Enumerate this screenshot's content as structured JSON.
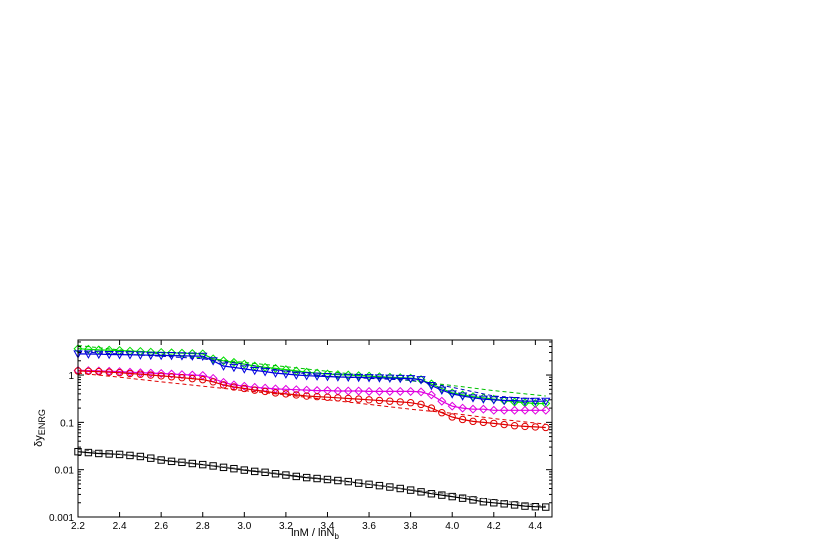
{
  "chart_data": {
    "type": "line",
    "xlabel": "lnM / lnN",
    "xlabel_sub": "b",
    "ylabel": "δy",
    "ylabel_sub": "ENRG",
    "xlim": [
      2.2,
      4.48
    ],
    "ylim": [
      0.001,
      5.5
    ],
    "yscale": "log",
    "xticks": [
      2.2,
      2.4,
      2.6,
      2.8,
      3.0,
      3.2,
      3.4,
      3.6,
      3.8,
      4.0,
      4.2,
      4.4
    ],
    "xtick_labels": [
      "2.2",
      "2.4",
      "2.6",
      "2.8",
      "3.0",
      "3.2",
      "3.4",
      "3.6",
      "3.8",
      "4.0",
      "4.2",
      "4.4"
    ],
    "yticks": [
      0.001,
      0.01,
      0.1,
      1
    ],
    "ytick_labels": [
      "0.001",
      "0.01",
      "0.1",
      "1"
    ],
    "grid": false,
    "series": [
      {
        "color": "#00e000",
        "marker": "diamond",
        "line": "solid",
        "x": [
          2.2,
          2.25,
          2.3,
          2.35,
          2.4,
          2.45,
          2.5,
          2.55,
          2.6,
          2.65,
          2.7,
          2.75,
          2.8,
          2.85,
          2.9,
          2.95,
          3.0,
          3.05,
          3.1,
          3.15,
          3.2,
          3.25,
          3.3,
          3.35,
          3.4,
          3.45,
          3.5,
          3.55,
          3.6,
          3.65,
          3.7,
          3.75,
          3.8,
          3.85,
          3.9,
          3.95,
          4.0,
          4.05,
          4.1,
          4.15,
          4.2,
          4.25,
          4.3,
          4.35,
          4.4,
          4.45
        ],
        "y": [
          3.6,
          3.5,
          3.4,
          3.35,
          3.3,
          3.2,
          3.15,
          3.05,
          3.0,
          2.95,
          2.9,
          2.85,
          2.8,
          2.2,
          2.0,
          1.85,
          1.7,
          1.55,
          1.45,
          1.38,
          1.3,
          1.22,
          1.15,
          1.1,
          1.05,
          1.02,
          1.0,
          0.97,
          0.95,
          0.92,
          0.9,
          0.88,
          0.86,
          0.8,
          0.65,
          0.52,
          0.42,
          0.38,
          0.35,
          0.33,
          0.31,
          0.29,
          0.27,
          0.26,
          0.25,
          0.25
        ]
      },
      {
        "color": "#00c000",
        "marker": "none",
        "line": "dashed",
        "x": [
          2.2,
          2.4,
          2.6,
          2.8,
          3.0,
          3.2,
          3.4,
          3.6,
          3.8,
          4.0,
          4.2,
          4.45
        ],
        "y": [
          4.2,
          3.4,
          2.8,
          2.3,
          1.85,
          1.5,
          1.2,
          0.95,
          0.76,
          0.6,
          0.47,
          0.36
        ]
      },
      {
        "color": "#0000e0",
        "marker": "triangle-down",
        "line": "solid",
        "x": [
          2.2,
          2.25,
          2.3,
          2.35,
          2.4,
          2.45,
          2.5,
          2.55,
          2.6,
          2.65,
          2.7,
          2.75,
          2.8,
          2.85,
          2.9,
          2.95,
          3.0,
          3.05,
          3.1,
          3.15,
          3.2,
          3.25,
          3.3,
          3.35,
          3.4,
          3.45,
          3.5,
          3.55,
          3.6,
          3.65,
          3.7,
          3.75,
          3.8,
          3.85,
          3.9,
          3.95,
          4.0,
          4.05,
          4.1,
          4.15,
          4.2,
          4.25,
          4.3,
          4.35,
          4.4,
          4.45
        ],
        "y": [
          2.8,
          2.78,
          2.75,
          2.72,
          2.7,
          2.68,
          2.65,
          2.62,
          2.6,
          2.58,
          2.55,
          2.52,
          2.5,
          2.0,
          1.55,
          1.45,
          1.35,
          1.25,
          1.18,
          1.1,
          1.05,
          1.0,
          0.97,
          0.95,
          0.93,
          0.91,
          0.9,
          0.89,
          0.88,
          0.87,
          0.86,
          0.85,
          0.84,
          0.8,
          0.6,
          0.48,
          0.4,
          0.36,
          0.33,
          0.31,
          0.3,
          0.29,
          0.29,
          0.28,
          0.28,
          0.28
        ]
      },
      {
        "color": "#0000c0",
        "marker": "none",
        "line": "dashed",
        "x": [
          2.2,
          2.4,
          2.6,
          2.8,
          3.0,
          3.2,
          3.4,
          3.6,
          3.8,
          4.0,
          4.2,
          4.45
        ],
        "y": [
          3.1,
          2.8,
          2.5,
          2.2,
          1.7,
          1.2,
          0.95,
          0.85,
          0.78,
          0.55,
          0.36,
          0.3
        ]
      },
      {
        "color": "#e000e0",
        "marker": "diamond",
        "line": "solid",
        "x": [
          2.2,
          2.25,
          2.3,
          2.35,
          2.4,
          2.45,
          2.5,
          2.55,
          2.6,
          2.65,
          2.7,
          2.75,
          2.8,
          2.85,
          2.9,
          2.95,
          3.0,
          3.05,
          3.1,
          3.15,
          3.2,
          3.25,
          3.3,
          3.35,
          3.4,
          3.45,
          3.5,
          3.55,
          3.6,
          3.65,
          3.7,
          3.75,
          3.8,
          3.85,
          3.9,
          3.95,
          4.0,
          4.05,
          4.1,
          4.15,
          4.2,
          4.25,
          4.3,
          4.35,
          4.4,
          4.45
        ],
        "y": [
          1.25,
          1.24,
          1.22,
          1.2,
          1.18,
          1.15,
          1.12,
          1.1,
          1.08,
          1.05,
          1.02,
          1.0,
          0.98,
          0.85,
          0.7,
          0.62,
          0.58,
          0.55,
          0.53,
          0.51,
          0.5,
          0.49,
          0.48,
          0.47,
          0.47,
          0.46,
          0.46,
          0.46,
          0.45,
          0.45,
          0.45,
          0.45,
          0.45,
          0.44,
          0.38,
          0.28,
          0.22,
          0.2,
          0.19,
          0.19,
          0.18,
          0.18,
          0.18,
          0.18,
          0.18,
          0.18
        ]
      },
      {
        "color": "#e00000",
        "marker": "circle",
        "line": "solid",
        "x": [
          2.2,
          2.25,
          2.3,
          2.35,
          2.4,
          2.45,
          2.5,
          2.55,
          2.6,
          2.65,
          2.7,
          2.75,
          2.8,
          2.85,
          2.9,
          2.95,
          3.0,
          3.05,
          3.1,
          3.15,
          3.2,
          3.25,
          3.3,
          3.35,
          3.4,
          3.45,
          3.5,
          3.55,
          3.6,
          3.65,
          3.7,
          3.75,
          3.8,
          3.85,
          3.9,
          3.95,
          4.0,
          4.05,
          4.1,
          4.15,
          4.2,
          4.25,
          4.3,
          4.35,
          4.4,
          4.45
        ],
        "y": [
          1.22,
          1.2,
          1.18,
          1.15,
          1.12,
          1.08,
          1.04,
          1.0,
          0.96,
          0.92,
          0.88,
          0.84,
          0.8,
          0.72,
          0.62,
          0.56,
          0.52,
          0.48,
          0.45,
          0.42,
          0.4,
          0.38,
          0.36,
          0.35,
          0.34,
          0.33,
          0.32,
          0.31,
          0.3,
          0.29,
          0.28,
          0.27,
          0.26,
          0.24,
          0.2,
          0.16,
          0.13,
          0.115,
          0.105,
          0.1,
          0.095,
          0.09,
          0.085,
          0.082,
          0.08,
          0.078
        ]
      },
      {
        "color": "#e00000",
        "marker": "none",
        "line": "dashed",
        "x": [
          2.2,
          2.4,
          2.6,
          2.8,
          3.0,
          3.2,
          3.4,
          3.6,
          3.8,
          4.0,
          4.2,
          4.45
        ],
        "y": [
          1.1,
          0.9,
          0.72,
          0.58,
          0.47,
          0.38,
          0.3,
          0.24,
          0.19,
          0.155,
          0.12,
          0.092
        ]
      },
      {
        "color": "#000000",
        "marker": "square",
        "line": "solid",
        "x": [
          2.2,
          2.25,
          2.3,
          2.35,
          2.4,
          2.45,
          2.5,
          2.55,
          2.6,
          2.65,
          2.7,
          2.75,
          2.8,
          2.85,
          2.9,
          2.95,
          3.0,
          3.05,
          3.1,
          3.15,
          3.2,
          3.25,
          3.3,
          3.35,
          3.4,
          3.45,
          3.5,
          3.55,
          3.6,
          3.65,
          3.7,
          3.75,
          3.8,
          3.85,
          3.9,
          3.95,
          4.0,
          4.05,
          4.1,
          4.15,
          4.2,
          4.25,
          4.3,
          4.35,
          4.4,
          4.45
        ],
        "y": [
          0.024,
          0.023,
          0.022,
          0.0215,
          0.021,
          0.02,
          0.019,
          0.0175,
          0.016,
          0.015,
          0.0143,
          0.0135,
          0.0128,
          0.012,
          0.0112,
          0.0105,
          0.0098,
          0.0092,
          0.0088,
          0.0082,
          0.0077,
          0.0072,
          0.0068,
          0.0065,
          0.0062,
          0.0059,
          0.0056,
          0.0052,
          0.0049,
          0.0046,
          0.0043,
          0.004,
          0.0037,
          0.0034,
          0.0031,
          0.0029,
          0.0027,
          0.0025,
          0.0023,
          0.0021,
          0.002,
          0.0019,
          0.0018,
          0.0017,
          0.00165,
          0.00162
        ]
      },
      {
        "color": "#606060",
        "marker": "none",
        "line": "dashed",
        "x": [
          2.2,
          2.4,
          2.6,
          2.8,
          3.0,
          3.2,
          3.4,
          3.6,
          3.8,
          4.0,
          4.2,
          4.45
        ],
        "y": [
          0.027,
          0.021,
          0.0165,
          0.013,
          0.0102,
          0.008,
          0.0063,
          0.0049,
          0.0038,
          0.003,
          0.0023,
          0.0017
        ]
      }
    ]
  }
}
